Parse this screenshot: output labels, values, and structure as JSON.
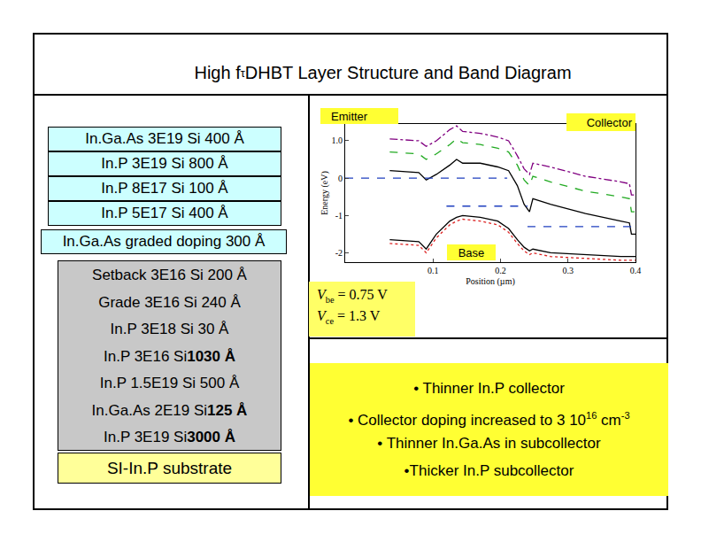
{
  "title": [
    {
      "text": "High f"
    },
    {
      "sub": "τ"
    },
    {
      "text": " DHBT Layer Structure and Band Diagram"
    }
  ],
  "layers": {
    "emitter": [
      [
        {
          "text": "In.Ga.As 3E19 Si 400 Å"
        }
      ],
      [
        {
          "text": "In.P 3E19 Si 800 Å"
        }
      ],
      [
        {
          "text": "In.P 8E17 Si 100 Å"
        }
      ],
      [
        {
          "text": "In.P 5E17 Si 400 Å"
        }
      ],
      [
        {
          "text": "In.Ga.As graded doping 300 Å"
        }
      ]
    ],
    "collector": [
      [
        {
          "text": "Setback 3E16 Si 200 Å"
        }
      ],
      [
        {
          "text": "Grade 3E16 Si 240 Å"
        }
      ],
      [
        {
          "text": "In.P 3E18 Si 30 Å"
        }
      ],
      [
        {
          "text": "In.P 3E16 Si "
        },
        {
          "bold": "1030 Å"
        }
      ],
      [
        {
          "text": "In.P 1.5E19 Si 500 Å"
        }
      ],
      [
        {
          "text": "In.Ga.As 2E19 Si "
        },
        {
          "bold": "125 Å"
        }
      ],
      [
        {
          "text": "In.P 3E19 Si "
        },
        {
          "bold": "3000 Å"
        }
      ]
    ],
    "substrate": "SI-In.P substrate"
  },
  "labels": {
    "emitter": "Emitter",
    "collector": "Collector",
    "base": "Base"
  },
  "bias": [
    [
      {
        "italic": "V"
      },
      {
        "sub": "be"
      },
      {
        "text": " = 0.75 V"
      }
    ],
    [
      {
        "italic": "V"
      },
      {
        "sub": "ce"
      },
      {
        "text": " = 1.3 V"
      }
    ]
  ],
  "notes": [
    [
      {
        "text": "• Thinner In.P collector"
      }
    ],
    [
      {
        "text": "• Collector doping increased to 3 10"
      },
      {
        "sup": "16"
      },
      {
        "text": " cm"
      },
      {
        "sup": "-3"
      }
    ],
    [
      {
        "text": "• Thinner In.Ga.As in subcollector"
      }
    ],
    [
      {
        "text": "•Thicker In.P subcollector"
      }
    ]
  ],
  "chart_data": {
    "type": "line",
    "x_label": "Position (µm)",
    "y_label": "Energy (eV)",
    "xlim": [
      -0.03,
      0.4
    ],
    "ylim": [
      -2.25,
      1.45
    ],
    "xticks": [
      0.1,
      0.2,
      0.3,
      0.4
    ],
    "yticks": [
      {
        "value": 1,
        "label": "1.0"
      },
      0,
      -1,
      -2
    ],
    "grid": false,
    "series": [
      {
        "color": "#800080",
        "line_style": "dashdot",
        "x": [
          0.036,
          0.079,
          0.09,
          0.105,
          0.125,
          0.135,
          0.144,
          0.17,
          0.196,
          0.212,
          0.225,
          0.235,
          0.243,
          0.248,
          0.274,
          0.326,
          0.378,
          0.391,
          0.394,
          0.4
        ],
        "values": [
          1.05,
          1.0,
          0.85,
          1.0,
          1.3,
          1.4,
          1.25,
          1.2,
          1.1,
          1.0,
          0.6,
          0.25,
          0.1,
          0.4,
          0.3,
          0.05,
          -0.1,
          -0.15,
          -0.45,
          -0.45
        ]
      },
      {
        "color": "#22aa22",
        "line_style": "dashed",
        "x": [
          0.036,
          0.079,
          0.09,
          0.105,
          0.125,
          0.135,
          0.144,
          0.17,
          0.196,
          0.212,
          0.225,
          0.235,
          0.243,
          0.248,
          0.274,
          0.326,
          0.378,
          0.391,
          0.394,
          0.4
        ],
        "values": [
          0.7,
          0.65,
          0.5,
          0.65,
          0.9,
          1.05,
          0.95,
          0.9,
          0.8,
          0.7,
          0.35,
          -0.05,
          -0.2,
          0.05,
          -0.1,
          -0.35,
          -0.5,
          -0.55,
          -0.9,
          -0.9
        ]
      },
      {
        "color": "#000000",
        "line_style": "solid",
        "x": [
          0.036,
          0.079,
          0.09,
          0.105,
          0.125,
          0.135,
          0.144,
          0.17,
          0.196,
          0.212,
          0.225,
          0.235,
          0.243,
          0.248,
          0.274,
          0.326,
          0.378,
          0.391,
          0.394,
          0.4
        ],
        "values": [
          0.2,
          0.15,
          -0.05,
          0.1,
          0.35,
          0.5,
          0.4,
          0.4,
          0.3,
          0.2,
          -0.2,
          -0.7,
          -0.9,
          -0.55,
          -0.7,
          -0.95,
          -1.15,
          -1.2,
          -1.5,
          -1.5
        ]
      },
      {
        "color": "#1f3fbf",
        "line_style": "dashed",
        "x": [
          -0.03,
          0.21,
          null,
          0.12,
          0.24,
          null,
          0.24,
          0.4
        ],
        "values": [
          0,
          0,
          null,
          -0.75,
          -0.75,
          null,
          -1.3,
          -1.3
        ]
      },
      {
        "color": "#000000",
        "line_style": "solid",
        "x": [
          0.036,
          0.079,
          0.09,
          0.105,
          0.125,
          0.135,
          0.144,
          0.17,
          0.196,
          0.212,
          0.225,
          0.235,
          0.243,
          0.248,
          0.274,
          0.326,
          0.378,
          0.4
        ],
        "values": [
          -1.65,
          -1.7,
          -1.9,
          -1.5,
          -1.15,
          -1.05,
          -1.0,
          -1.05,
          -1.15,
          -1.35,
          -1.65,
          -1.85,
          -1.95,
          -1.9,
          -2.0,
          -2.05,
          -2.1,
          -2.1
        ]
      },
      {
        "color": "#dd2222",
        "line_style": "dotted",
        "x": [
          0.036,
          0.079,
          0.09,
          0.105,
          0.125,
          0.135,
          0.144,
          0.17,
          0.196,
          0.212,
          0.225,
          0.235,
          0.243,
          0.248,
          0.274,
          0.326,
          0.378,
          0.4
        ],
        "values": [
          -1.75,
          -1.8,
          -2.0,
          -1.6,
          -1.25,
          -1.15,
          -1.1,
          -1.15,
          -1.25,
          -1.45,
          -1.75,
          -1.95,
          -2.05,
          -2.0,
          -2.1,
          -2.15,
          -2.2,
          -2.2
        ]
      }
    ]
  }
}
